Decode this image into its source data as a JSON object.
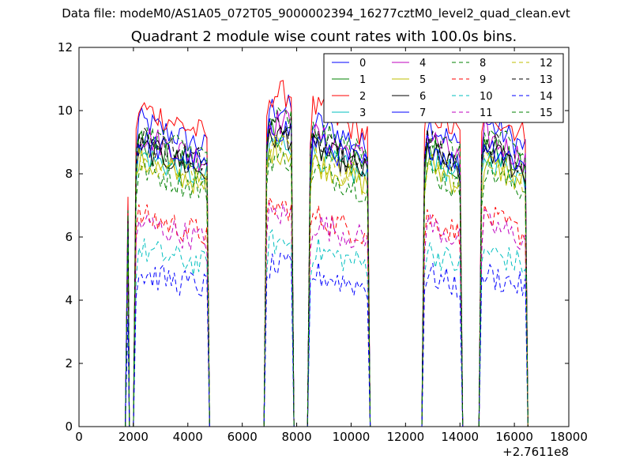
{
  "chart_data": {
    "type": "line",
    "suptitle": "Data file: modeM0/AS1A05_072T05_9000002394_16277cztM0_level2_quad_clean.evt",
    "title": "Quadrant 2 module wise count rates with 100.0s bins.",
    "xlabel": "",
    "ylabel": "",
    "x_offset_label": "+2.7611e8",
    "xlim": [
      0,
      18000
    ],
    "ylim": [
      0,
      12
    ],
    "xticks": [
      0,
      2000,
      4000,
      6000,
      8000,
      10000,
      12000,
      14000,
      16000,
      18000
    ],
    "yticks": [
      0,
      2,
      4,
      6,
      8,
      10,
      12
    ],
    "x_tick_labels": [
      "0",
      "2000",
      "4000",
      "6000",
      "8000",
      "10000",
      "12000",
      "14000",
      "16000",
      "18000"
    ],
    "y_tick_labels": [
      "0",
      "2",
      "4",
      "6",
      "8",
      "10",
      "12"
    ],
    "legend_position": "top-right",
    "segments": [
      {
        "start": 1800,
        "end": 1800
      },
      {
        "start": 2100,
        "end": 4700
      },
      {
        "start": 6900,
        "end": 7800
      },
      {
        "start": 8500,
        "end": 10600
      },
      {
        "start": 12700,
        "end": 14000
      },
      {
        "start": 14800,
        "end": 16400
      }
    ],
    "series": [
      {
        "name": "0",
        "color": "#0000ff",
        "dash": "solid",
        "level": 9.0
      },
      {
        "name": "1",
        "color": "#008000",
        "dash": "solid",
        "level": 8.3
      },
      {
        "name": "2",
        "color": "#ff0000",
        "dash": "solid",
        "level": 9.4
      },
      {
        "name": "3",
        "color": "#00bfbf",
        "dash": "solid",
        "level": 8.0
      },
      {
        "name": "4",
        "color": "#bf00bf",
        "dash": "solid",
        "level": 8.6
      },
      {
        "name": "5",
        "color": "#bfbf00",
        "dash": "solid",
        "level": 7.8
      },
      {
        "name": "6",
        "color": "#000000",
        "dash": "solid",
        "level": 8.2
      },
      {
        "name": "7",
        "color": "#0000ff",
        "dash": "solid",
        "level": 8.4
      },
      {
        "name": "8",
        "color": "#008000",
        "dash": "dashed",
        "level": 7.6
      },
      {
        "name": "9",
        "color": "#ff0000",
        "dash": "dashed",
        "level": 6.2
      },
      {
        "name": "10",
        "color": "#00bfbf",
        "dash": "dashed",
        "level": 5.2
      },
      {
        "name": "11",
        "color": "#bf00bf",
        "dash": "dashed",
        "level": 6.0
      },
      {
        "name": "12",
        "color": "#bfbf00",
        "dash": "dashed",
        "level": 7.9
      },
      {
        "name": "13",
        "color": "#000000",
        "dash": "dashed",
        "level": 8.5
      },
      {
        "name": "14",
        "color": "#0000ff",
        "dash": "dashed",
        "level": 4.5
      },
      {
        "name": "15",
        "color": "#008000",
        "dash": "dashed",
        "level": 8.7
      }
    ]
  }
}
